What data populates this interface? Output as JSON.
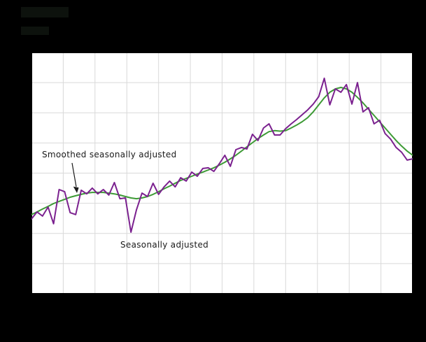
{
  "figure": {
    "background_color": "#000000",
    "plot_background_color": "#ffffff"
  },
  "chart_data": {
    "type": "line",
    "title": "",
    "xlabel": "",
    "ylabel": "",
    "x_unit": "time (monthly observations, axis labels not visible)",
    "series": [
      {
        "id": "seasonally-adjusted",
        "name": "Seasonally adjusted",
        "color": "#7b218f",
        "width": 2,
        "values": [
          31.0,
          33.9,
          32.2,
          35.9,
          29.0,
          43.2,
          42.3,
          33.6,
          32.8,
          42.9,
          41.4,
          43.8,
          41.4,
          43.2,
          40.9,
          46.1,
          39.4,
          39.7,
          25.5,
          34.8,
          41.7,
          40.3,
          45.8,
          41.2,
          44.3,
          46.7,
          44.3,
          48.1,
          46.7,
          50.4,
          48.7,
          51.9,
          52.2,
          50.7,
          53.9,
          57.4,
          52.8,
          59.7,
          60.6,
          60.0,
          66.1,
          63.5,
          68.7,
          70.4,
          65.8,
          65.8,
          68.4,
          70.4,
          72.2,
          74.2,
          76.2,
          78.6,
          81.7,
          89.3,
          78.3,
          84.9,
          83.5,
          86.7,
          78.6,
          87.5,
          75.4,
          77.1,
          70.4,
          71.9,
          66.4,
          64.1,
          60.6,
          58.6,
          55.4,
          55.9
        ]
      },
      {
        "id": "smoothed-seasonally-adjusted",
        "name": "Smoothed seasonally adjusted",
        "color": "#3d9a35",
        "width": 2,
        "values": [
          32.8,
          33.9,
          35.1,
          36.2,
          37.4,
          38.3,
          39.1,
          40.0,
          40.6,
          41.2,
          41.7,
          42.0,
          42.0,
          42.0,
          41.7,
          41.4,
          40.9,
          40.3,
          39.7,
          39.4,
          39.7,
          40.3,
          41.2,
          42.3,
          43.5,
          44.6,
          45.8,
          47.0,
          47.8,
          48.7,
          49.6,
          50.4,
          51.3,
          52.2,
          53.3,
          54.5,
          55.9,
          57.4,
          59.1,
          60.9,
          62.6,
          64.3,
          65.8,
          67.2,
          67.6,
          67.4,
          67.6,
          68.7,
          69.9,
          71.3,
          73.0,
          75.4,
          78.3,
          81.2,
          83.5,
          84.9,
          85.5,
          84.9,
          83.5,
          81.4,
          79.1,
          76.5,
          73.9,
          71.3,
          68.7,
          66.1,
          63.5,
          61.2,
          59.1,
          57.4
        ]
      }
    ],
    "annotations": [
      {
        "text": "Smoothed seasonally adjusted",
        "arrow": true,
        "target": "smoothed-seasonally-adjusted"
      },
      {
        "text": "Seasonally adjusted",
        "arrow": false,
        "target": "seasonally-adjusted"
      }
    ],
    "layout": {
      "grid": true,
      "vertical_gridlines": 13,
      "horizontal_gridlines": 9,
      "grid_color": "#d9d9d9",
      "axis_color": "#000000",
      "ylim": [
        0,
        100
      ],
      "axis_tick_labels_visible": false,
      "legend_position": "none (labels drawn as in-plot annotations)"
    }
  }
}
